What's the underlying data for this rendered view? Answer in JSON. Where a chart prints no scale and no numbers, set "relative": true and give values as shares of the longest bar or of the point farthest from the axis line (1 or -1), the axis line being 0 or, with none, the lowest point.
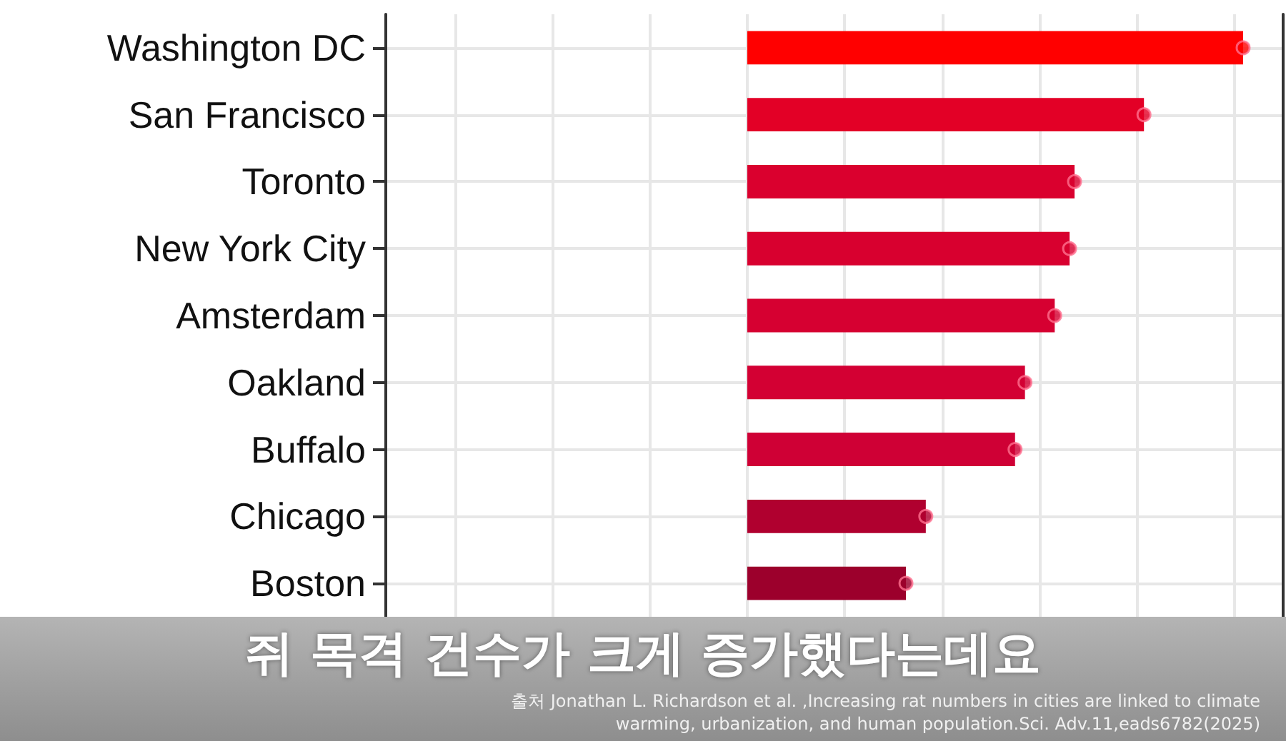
{
  "chart_data": {
    "type": "bar",
    "orientation": "horizontal",
    "relative": true,
    "categories": [
      "Washington DC",
      "San Francisco",
      "Toronto",
      "New York City",
      "Amsterdam",
      "Oakland",
      "Buffalo",
      "Chicago",
      "Boston"
    ],
    "series": [
      {
        "values": [
          1,
          0.8,
          0.66,
          0.65,
          0.62,
          0.56,
          0.54,
          0.36,
          0.32
        ],
        "colors": [
          "#ff0000",
          "#e30026",
          "#da002e",
          "#d8002f",
          "#d60031",
          "#d30033",
          "#cf0035",
          "#b0002f",
          "#9c002c"
        ]
      },
      {
        "type": "scatter",
        "marker": "circle",
        "x": [
          "Washington DC",
          "San Francisco",
          "Toronto",
          "New York City",
          "Amsterdam",
          "Oakland",
          "Buffalo",
          "Chicago",
          "Boston"
        ],
        "values": [
          1,
          0.8,
          0.66,
          0.65,
          0.62,
          0.56,
          0.54,
          0.36,
          0.32
        ],
        "colors": [
          "#ff0000",
          "#e30026",
          "#da002e",
          "#d8002f",
          "#d60031",
          "#d30033",
          "#cf0035",
          "#b0002f",
          "#9c002c"
        ]
      }
    ],
    "grid": true,
    "subtitle": "쥐 목격 건수가 크게 증가했다는데요",
    "annotations": [
      "출처 Jonathan L. Richardson et al. ,Increasing rat numbers in cities are linked to climate warming, urbanization, and human population.Sci. Adv.11,eads6782(2025)"
    ]
  }
}
